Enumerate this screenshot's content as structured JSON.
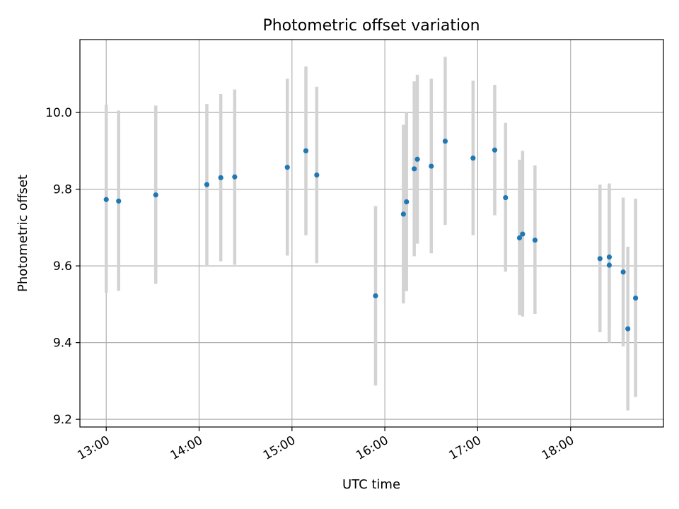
{
  "chart_data": {
    "type": "scatter",
    "title": "Photometric offset variation",
    "xlabel": "UTC time",
    "ylabel": "Photometric offset",
    "x_ticks": [
      "13:00",
      "14:00",
      "15:00",
      "16:00",
      "17:00",
      "18:00"
    ],
    "y_ticks": [
      "9.2",
      "9.4",
      "9.6",
      "9.8",
      "10.0"
    ],
    "xlim": [
      "12:43",
      "19:00"
    ],
    "ylim": [
      9.18,
      10.19
    ],
    "grid": true,
    "point_color": "#1f77b4",
    "errorbar_color": "#d3d3d3",
    "series": [
      {
        "points": [
          {
            "x": "13:00",
            "y": 9.773,
            "err_low": 9.53,
            "err_high": 10.02
          },
          {
            "x": "13:08",
            "y": 9.769,
            "err_low": 9.535,
            "err_high": 10.005
          },
          {
            "x": "13:32",
            "y": 9.785,
            "err_low": 9.553,
            "err_high": 10.018
          },
          {
            "x": "14:05",
            "y": 9.812,
            "err_low": 9.602,
            "err_high": 10.022
          },
          {
            "x": "14:14",
            "y": 9.83,
            "err_low": 9.612,
            "err_high": 10.048
          },
          {
            "x": "14:23",
            "y": 9.832,
            "err_low": 9.603,
            "err_high": 10.06
          },
          {
            "x": "14:57",
            "y": 9.857,
            "err_low": 9.627,
            "err_high": 10.088
          },
          {
            "x": "15:09",
            "y": 9.9,
            "err_low": 9.68,
            "err_high": 10.12
          },
          {
            "x": "15:16",
            "y": 9.837,
            "err_low": 9.607,
            "err_high": 10.067
          },
          {
            "x": "15:54",
            "y": 9.522,
            "err_low": 9.288,
            "err_high": 9.756
          },
          {
            "x": "16:12",
            "y": 9.735,
            "err_low": 9.502,
            "err_high": 9.968
          },
          {
            "x": "16:14",
            "y": 9.767,
            "err_low": 9.534,
            "err_high": 10.0
          },
          {
            "x": "16:19",
            "y": 9.853,
            "err_low": 9.625,
            "err_high": 10.081
          },
          {
            "x": "16:21",
            "y": 9.878,
            "err_low": 9.658,
            "err_high": 10.098
          },
          {
            "x": "16:30",
            "y": 9.86,
            "err_low": 9.633,
            "err_high": 10.088
          },
          {
            "x": "16:39",
            "y": 9.925,
            "err_low": 9.707,
            "err_high": 10.145
          },
          {
            "x": "16:57",
            "y": 9.881,
            "err_low": 9.68,
            "err_high": 10.083
          },
          {
            "x": "17:11",
            "y": 9.902,
            "err_low": 9.732,
            "err_high": 10.072
          },
          {
            "x": "17:18",
            "y": 9.778,
            "err_low": 9.585,
            "err_high": 9.973
          },
          {
            "x": "17:27",
            "y": 9.673,
            "err_low": 9.472,
            "err_high": 9.877
          },
          {
            "x": "17:29",
            "y": 9.683,
            "err_low": 9.468,
            "err_high": 9.9
          },
          {
            "x": "17:37",
            "y": 9.667,
            "err_low": 9.475,
            "err_high": 9.862
          },
          {
            "x": "18:19",
            "y": 9.619,
            "err_low": 9.427,
            "err_high": 9.812
          },
          {
            "x": "18:25",
            "y": 9.623,
            "err_low": 9.432,
            "err_high": 9.815
          },
          {
            "x": "18:25",
            "y": 9.602,
            "err_low": 9.4,
            "err_high": 9.805
          },
          {
            "x": "18:34",
            "y": 9.584,
            "err_low": 9.39,
            "err_high": 9.778
          },
          {
            "x": "18:37",
            "y": 9.436,
            "err_low": 9.223,
            "err_high": 9.65
          },
          {
            "x": "18:42",
            "y": 9.516,
            "err_low": 9.258,
            "err_high": 9.775
          }
        ]
      }
    ]
  }
}
